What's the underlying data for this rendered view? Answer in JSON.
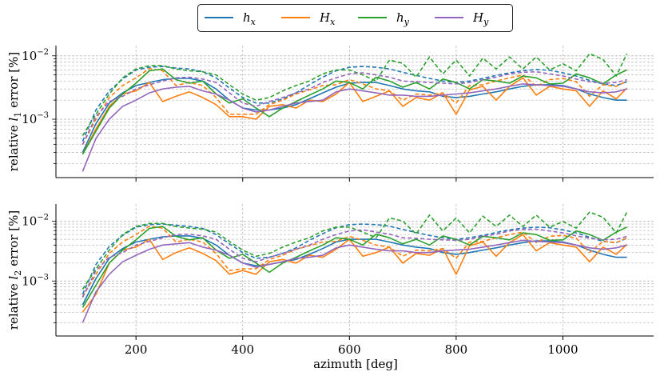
{
  "figure": {
    "legend": {
      "placement": "top-center",
      "entries": [
        {
          "label": "h_x",
          "sym": "h",
          "sub": "x",
          "color": "#1f77b4"
        },
        {
          "label": "H_x",
          "sym": "H",
          "sub": "x",
          "color": "#ff7f0e"
        },
        {
          "label": "h_y",
          "sym": "h",
          "sub": "y",
          "color": "#2ca02c"
        },
        {
          "label": "H_y",
          "sym": "H",
          "sub": "y",
          "color": "#9467bd"
        }
      ]
    }
  },
  "chart_data": [
    {
      "type": "line",
      "ylabel": "relative l_1 error [%]",
      "ylabel_parts": {
        "pre": "relative ",
        "sym": "l",
        "sub": "1",
        "post": " error [%]"
      },
      "xlabel": "",
      "yscale": "log",
      "xlim": [
        50,
        1170
      ],
      "ylim": [
        0.00012,
        0.0145
      ],
      "xticks": [
        200,
        400,
        600,
        800,
        1000
      ],
      "ytick_labels": [
        {
          "value": 0.01,
          "base": "10",
          "exp": "−2"
        },
        {
          "value": 0.001,
          "base": "10",
          "exp": "−3"
        }
      ],
      "grid": true,
      "x": [
        100,
        125,
        150,
        175,
        200,
        225,
        250,
        275,
        300,
        325,
        350,
        375,
        400,
        425,
        450,
        475,
        500,
        525,
        550,
        575,
        600,
        625,
        650,
        675,
        700,
        725,
        750,
        775,
        800,
        825,
        850,
        875,
        900,
        925,
        950,
        975,
        1000,
        1025,
        1050,
        1075,
        1100,
        1120
      ],
      "series": [
        {
          "name": "h_x",
          "key": "hx",
          "style": "solid",
          "color": "#1f77b4",
          "values": [
            0.0003,
            0.00085,
            0.0018,
            0.0026,
            0.0034,
            0.0038,
            0.0042,
            0.0044,
            0.0044,
            0.004,
            0.003,
            0.002,
            0.0015,
            0.0014,
            0.0014,
            0.0015,
            0.0017,
            0.0021,
            0.0026,
            0.0032,
            0.0037,
            0.0038,
            0.0038,
            0.0034,
            0.003,
            0.0028,
            0.0027,
            0.0023,
            0.0022,
            0.0023,
            0.0025,
            0.0027,
            0.003,
            0.0033,
            0.0035,
            0.0035,
            0.0034,
            0.003,
            0.0025,
            0.0022,
            0.002,
            0.002
          ]
        },
        {
          "name": "h_x",
          "key": "hx",
          "style": "dashed",
          "color": "#1f77b4",
          "values": [
            0.00045,
            0.0014,
            0.0028,
            0.0043,
            0.006,
            0.0066,
            0.0068,
            0.0064,
            0.0062,
            0.0056,
            0.0045,
            0.0031,
            0.0022,
            0.0018,
            0.0018,
            0.0021,
            0.0026,
            0.0035,
            0.0046,
            0.0058,
            0.0066,
            0.0068,
            0.0066,
            0.0062,
            0.0055,
            0.0049,
            0.0044,
            0.004,
            0.0038,
            0.004,
            0.0044,
            0.0049,
            0.0054,
            0.0058,
            0.0061,
            0.0059,
            0.0054,
            0.0048,
            0.0041,
            0.0036,
            0.0034,
            0.0039
          ]
        },
        {
          "name": "H_x",
          "key": "Hx",
          "style": "solid",
          "color": "#ff7f0e",
          "values": [
            0.00028,
            0.0007,
            0.0016,
            0.0025,
            0.0028,
            0.0038,
            0.0019,
            0.0023,
            0.0027,
            0.0022,
            0.0017,
            0.0011,
            0.0011,
            0.001,
            0.0016,
            0.0017,
            0.0015,
            0.002,
            0.0019,
            0.0025,
            0.0038,
            0.0019,
            0.0023,
            0.0028,
            0.0016,
            0.0022,
            0.002,
            0.0026,
            0.0012,
            0.0029,
            0.0033,
            0.002,
            0.0033,
            0.0045,
            0.0024,
            0.0033,
            0.003,
            0.0028,
            0.0016,
            0.0028,
            0.0021,
            0.0031
          ]
        },
        {
          "name": "H_x",
          "key": "Hx",
          "style": "dashed",
          "color": "#ff7f0e",
          "values": [
            0.0004,
            0.001,
            0.0022,
            0.0034,
            0.0045,
            0.0063,
            0.0058,
            0.0034,
            0.0038,
            0.0034,
            0.0022,
            0.0012,
            0.0012,
            0.0012,
            0.0017,
            0.002,
            0.0025,
            0.0029,
            0.0034,
            0.0035,
            0.0042,
            0.0036,
            0.003,
            0.0028,
            0.002,
            0.0025,
            0.0024,
            0.0026,
            0.0018,
            0.0034,
            0.0035,
            0.004,
            0.0045,
            0.005,
            0.0033,
            0.0042,
            0.0044,
            0.0039,
            0.0023,
            0.0035,
            0.0033,
            0.004
          ]
        },
        {
          "name": "h_y",
          "key": "hy",
          "style": "solid",
          "color": "#2ca02c",
          "values": [
            0.00028,
            0.00065,
            0.0015,
            0.0025,
            0.0037,
            0.0058,
            0.0062,
            0.0042,
            0.0037,
            0.004,
            0.0025,
            0.0018,
            0.0021,
            0.0015,
            0.0011,
            0.0015,
            0.0019,
            0.0024,
            0.003,
            0.004,
            0.0038,
            0.003,
            0.0046,
            0.004,
            0.0032,
            0.0038,
            0.003,
            0.0043,
            0.0038,
            0.003,
            0.0042,
            0.004,
            0.0037,
            0.0048,
            0.0045,
            0.0036,
            0.0037,
            0.0052,
            0.0045,
            0.0036,
            0.005,
            0.006
          ]
        },
        {
          "name": "h_y",
          "key": "hy",
          "style": "dashed",
          "color": "#2ca02c",
          "values": [
            0.00055,
            0.0012,
            0.0025,
            0.0045,
            0.0062,
            0.007,
            0.007,
            0.0062,
            0.0058,
            0.0056,
            0.005,
            0.0035,
            0.0025,
            0.002,
            0.0022,
            0.0028,
            0.0034,
            0.004,
            0.0052,
            0.006,
            0.006,
            0.005,
            0.004,
            0.0086,
            0.0076,
            0.0046,
            0.0096,
            0.0052,
            0.0086,
            0.0048,
            0.0092,
            0.0062,
            0.0096,
            0.0062,
            0.0096,
            0.006,
            0.0075,
            0.0058,
            0.0108,
            0.0088,
            0.0048,
            0.0108
          ]
        },
        {
          "name": "H_y",
          "key": "Hy",
          "style": "solid",
          "color": "#9467bd",
          "values": [
            0.00015,
            0.0005,
            0.001,
            0.0016,
            0.002,
            0.0026,
            0.003,
            0.0032,
            0.0033,
            0.0028,
            0.0025,
            0.002,
            0.0015,
            0.0013,
            0.0014,
            0.0016,
            0.0018,
            0.0019,
            0.002,
            0.0027,
            0.003,
            0.0028,
            0.0026,
            0.0024,
            0.0024,
            0.0023,
            0.0023,
            0.0024,
            0.0025,
            0.0026,
            0.0028,
            0.003,
            0.0033,
            0.0036,
            0.0035,
            0.0034,
            0.0033,
            0.003,
            0.0027,
            0.0026,
            0.0027,
            0.003
          ]
        },
        {
          "name": "H_y",
          "key": "Hy",
          "style": "dashed",
          "color": "#9467bd",
          "values": [
            0.0004,
            0.0011,
            0.0019,
            0.0023,
            0.003,
            0.0035,
            0.004,
            0.0045,
            0.0046,
            0.0043,
            0.0038,
            0.0026,
            0.0018,
            0.0016,
            0.0019,
            0.0022,
            0.0026,
            0.003,
            0.0038,
            0.0045,
            0.0052,
            0.0054,
            0.005,
            0.0046,
            0.004,
            0.0039,
            0.0038,
            0.0037,
            0.0036,
            0.0038,
            0.0042,
            0.0046,
            0.0052,
            0.0055,
            0.0056,
            0.0052,
            0.0048,
            0.0043,
            0.0039,
            0.0037,
            0.0038,
            0.0042
          ]
        }
      ]
    },
    {
      "type": "line",
      "ylabel": "relative l_2 error [%]",
      "ylabel_parts": {
        "pre": "relative ",
        "sym": "l",
        "sub": "2",
        "post": " error [%]"
      },
      "xlabel": "azimuth [deg]",
      "yscale": "log",
      "xlim": [
        50,
        1170
      ],
      "ylim": [
        0.00012,
        0.0195
      ],
      "xticks": [
        200,
        400,
        600,
        800,
        1000
      ],
      "ytick_labels": [
        {
          "value": 0.01,
          "base": "10",
          "exp": "−2"
        },
        {
          "value": 0.001,
          "base": "10",
          "exp": "−3"
        }
      ],
      "grid": true,
      "x": [
        100,
        125,
        150,
        175,
        200,
        225,
        250,
        275,
        300,
        325,
        350,
        375,
        400,
        425,
        450,
        475,
        500,
        525,
        550,
        575,
        600,
        625,
        650,
        675,
        700,
        725,
        750,
        775,
        800,
        825,
        850,
        875,
        900,
        925,
        950,
        975,
        1000,
        1025,
        1050,
        1075,
        1100,
        1120
      ],
      "series": [
        {
          "name": "h_x",
          "key": "hx",
          "style": "solid",
          "color": "#1f77b4",
          "values": [
            0.0004,
            0.0011,
            0.0024,
            0.0035,
            0.0045,
            0.005,
            0.0055,
            0.0057,
            0.0057,
            0.0052,
            0.004,
            0.0027,
            0.002,
            0.0018,
            0.0019,
            0.0021,
            0.0023,
            0.0028,
            0.0035,
            0.0045,
            0.005,
            0.005,
            0.005,
            0.0045,
            0.004,
            0.0037,
            0.0035,
            0.003,
            0.0028,
            0.003,
            0.0033,
            0.0036,
            0.004,
            0.0044,
            0.0047,
            0.0047,
            0.0045,
            0.004,
            0.0033,
            0.0028,
            0.0025,
            0.0025
          ]
        },
        {
          "name": "h_x",
          "key": "hx",
          "style": "dashed",
          "color": "#1f77b4",
          "values": [
            0.0006,
            0.0019,
            0.0038,
            0.0058,
            0.008,
            0.0088,
            0.009,
            0.0086,
            0.0082,
            0.0076,
            0.006,
            0.0042,
            0.003,
            0.0024,
            0.0025,
            0.0029,
            0.0036,
            0.0048,
            0.0062,
            0.0078,
            0.0088,
            0.009,
            0.0088,
            0.0083,
            0.0073,
            0.0065,
            0.0058,
            0.0053,
            0.005,
            0.0053,
            0.0058,
            0.0065,
            0.0072,
            0.0077,
            0.008,
            0.0078,
            0.0072,
            0.0064,
            0.0054,
            0.0046,
            0.0044,
            0.0052
          ]
        },
        {
          "name": "H_x",
          "key": "Hx",
          "style": "solid",
          "color": "#ff7f0e",
          "values": [
            0.0003,
            0.0006,
            0.002,
            0.0033,
            0.0037,
            0.005,
            0.0023,
            0.003,
            0.0036,
            0.0029,
            0.0022,
            0.0013,
            0.0015,
            0.0013,
            0.0021,
            0.0023,
            0.002,
            0.0027,
            0.0025,
            0.0034,
            0.005,
            0.0026,
            0.003,
            0.0037,
            0.002,
            0.0029,
            0.0027,
            0.0035,
            0.0013,
            0.0039,
            0.0045,
            0.0026,
            0.0044,
            0.006,
            0.0032,
            0.0044,
            0.004,
            0.0037,
            0.0021,
            0.0037,
            0.0028,
            0.0041
          ]
        },
        {
          "name": "H_x",
          "key": "Hx",
          "style": "dashed",
          "color": "#ff7f0e",
          "values": [
            0.00055,
            0.0013,
            0.0029,
            0.0045,
            0.006,
            0.0083,
            0.0077,
            0.0045,
            0.005,
            0.0045,
            0.0029,
            0.0015,
            0.0016,
            0.0016,
            0.0023,
            0.0027,
            0.0034,
            0.0039,
            0.0045,
            0.0046,
            0.0056,
            0.0048,
            0.004,
            0.0037,
            0.0026,
            0.0033,
            0.0032,
            0.0035,
            0.0024,
            0.0045,
            0.0046,
            0.0053,
            0.006,
            0.0066,
            0.0044,
            0.0056,
            0.0058,
            0.0052,
            0.003,
            0.0046,
            0.0044,
            0.0053
          ]
        },
        {
          "name": "h_y",
          "key": "hy",
          "style": "solid",
          "color": "#2ca02c",
          "values": [
            0.00036,
            0.00085,
            0.002,
            0.0033,
            0.0049,
            0.0076,
            0.0082,
            0.0056,
            0.0049,
            0.0053,
            0.0033,
            0.0024,
            0.0028,
            0.002,
            0.0014,
            0.002,
            0.0025,
            0.0032,
            0.004,
            0.0053,
            0.005,
            0.004,
            0.0061,
            0.0053,
            0.0042,
            0.005,
            0.004,
            0.0057,
            0.005,
            0.004,
            0.0056,
            0.0053,
            0.0049,
            0.0064,
            0.006,
            0.0048,
            0.0049,
            0.0069,
            0.006,
            0.0048,
            0.0066,
            0.008
          ]
        },
        {
          "name": "h_y",
          "key": "hy",
          "style": "dashed",
          "color": "#2ca02c",
          "values": [
            0.00073,
            0.0016,
            0.0033,
            0.006,
            0.0082,
            0.0092,
            0.0092,
            0.0082,
            0.0077,
            0.0074,
            0.0066,
            0.0046,
            0.0033,
            0.0026,
            0.0029,
            0.0037,
            0.0045,
            0.0053,
            0.0069,
            0.008,
            0.008,
            0.0066,
            0.0053,
            0.0114,
            0.0101,
            0.0061,
            0.0127,
            0.0069,
            0.0114,
            0.0064,
            0.0122,
            0.0082,
            0.0127,
            0.0082,
            0.0127,
            0.008,
            0.0099,
            0.0077,
            0.0143,
            0.0117,
            0.0064,
            0.0143
          ]
        },
        {
          "name": "H_y",
          "key": "Hy",
          "style": "solid",
          "color": "#9467bd",
          "values": [
            0.0002,
            0.00066,
            0.0013,
            0.0021,
            0.0027,
            0.0034,
            0.004,
            0.0042,
            0.0044,
            0.0037,
            0.0033,
            0.0027,
            0.002,
            0.0017,
            0.0019,
            0.0021,
            0.0024,
            0.0025,
            0.0027,
            0.0036,
            0.004,
            0.0037,
            0.0034,
            0.0032,
            0.0032,
            0.003,
            0.003,
            0.0032,
            0.0033,
            0.0034,
            0.0037,
            0.004,
            0.0044,
            0.0048,
            0.0046,
            0.0045,
            0.0044,
            0.004,
            0.0036,
            0.0034,
            0.0036,
            0.004
          ]
        },
        {
          "name": "H_y",
          "key": "Hy",
          "style": "dashed",
          "color": "#9467bd",
          "values": [
            0.00053,
            0.0015,
            0.0025,
            0.003,
            0.004,
            0.0046,
            0.0053,
            0.006,
            0.0061,
            0.0057,
            0.005,
            0.0034,
            0.0024,
            0.0021,
            0.0025,
            0.0029,
            0.0034,
            0.004,
            0.005,
            0.006,
            0.0069,
            0.0072,
            0.0066,
            0.0061,
            0.0053,
            0.0052,
            0.005,
            0.0049,
            0.0048,
            0.005,
            0.0056,
            0.0061,
            0.0069,
            0.0073,
            0.0074,
            0.0069,
            0.0064,
            0.0057,
            0.0052,
            0.0049,
            0.005,
            0.0056
          ]
        }
      ]
    }
  ]
}
